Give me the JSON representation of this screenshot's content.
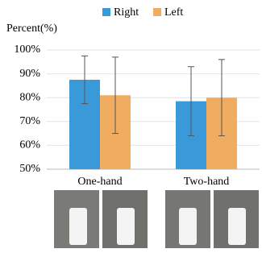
{
  "chart_data": {
    "type": "bar",
    "y_label": "Percent(%)",
    "categories": [
      "One-hand",
      "Two-hand"
    ],
    "series": [
      {
        "name": "Right",
        "color": "#3a9ad9",
        "values": [
          87.5,
          78.5
        ],
        "errors": [
          10,
          14.5
        ]
      },
      {
        "name": "Left",
        "color": "#f0ad62",
        "values": [
          81,
          80
        ],
        "errors": [
          16,
          16
        ]
      }
    ],
    "ylim": [
      50,
      100
    ],
    "yticks": [
      {
        "value": 50,
        "label": "50%"
      },
      {
        "value": 60,
        "label": "60%"
      },
      {
        "value": 70,
        "label": "70%"
      },
      {
        "value": 80,
        "label": "80%"
      },
      {
        "value": 90,
        "label": "90%"
      },
      {
        "value": 100,
        "label": "100%"
      }
    ],
    "grid": true,
    "legend": "top"
  }
}
